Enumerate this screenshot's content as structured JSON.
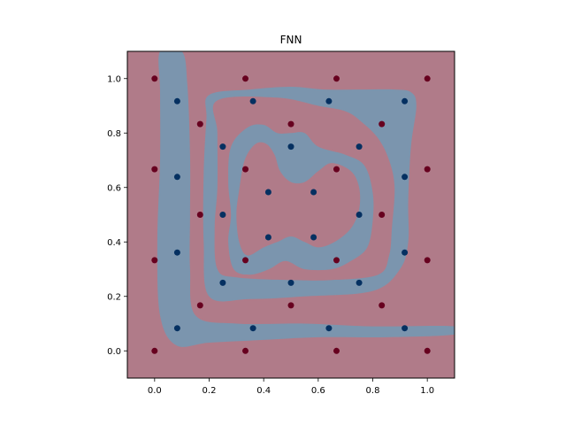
{
  "chart_data": {
    "type": "scatter",
    "title": "FNN",
    "xlabel": "",
    "ylabel": "",
    "xlim": [
      -0.1,
      1.1
    ],
    "ylim": [
      -0.1,
      1.1
    ],
    "xticks": [
      0.0,
      0.2,
      0.4,
      0.6,
      0.8,
      1.0
    ],
    "yticks": [
      0.0,
      0.2,
      0.4,
      0.6,
      0.8,
      1.0
    ],
    "xtick_labels": [
      "0.0",
      "0.2",
      "0.4",
      "0.6",
      "0.8",
      "1.0"
    ],
    "ytick_labels": [
      "0.0",
      "0.2",
      "0.4",
      "0.6",
      "0.8",
      "1.0"
    ],
    "grid": false,
    "legend": "none",
    "colors": {
      "class_0_point": "#67001f",
      "class_1_point": "#053061",
      "class_0_region": "#b07b89",
      "class_1_region": "#7b95ae",
      "axes_edge": "#000000"
    },
    "series": [
      {
        "class": 0,
        "points": [
          [
            0.0,
            1.0
          ],
          [
            0.333,
            1.0
          ],
          [
            0.667,
            1.0
          ],
          [
            1.0,
            1.0
          ],
          [
            0.0,
            0.667
          ],
          [
            1.0,
            0.667
          ],
          [
            0.0,
            0.333
          ],
          [
            1.0,
            0.333
          ],
          [
            0.0,
            0.0
          ],
          [
            0.333,
            0.0
          ],
          [
            0.667,
            0.0
          ],
          [
            1.0,
            0.0
          ],
          [
            0.167,
            0.833
          ],
          [
            0.5,
            0.833
          ],
          [
            0.833,
            0.833
          ],
          [
            0.167,
            0.5
          ],
          [
            0.833,
            0.5
          ],
          [
            0.167,
            0.167
          ],
          [
            0.5,
            0.167
          ],
          [
            0.833,
            0.167
          ],
          [
            0.333,
            0.667
          ],
          [
            0.667,
            0.667
          ],
          [
            0.333,
            0.333
          ],
          [
            0.667,
            0.333
          ]
        ]
      },
      {
        "class": 1,
        "points": [
          [
            0.083,
            0.917
          ],
          [
            0.361,
            0.917
          ],
          [
            0.639,
            0.917
          ],
          [
            0.917,
            0.917
          ],
          [
            0.083,
            0.639
          ],
          [
            0.917,
            0.639
          ],
          [
            0.083,
            0.361
          ],
          [
            0.917,
            0.361
          ],
          [
            0.083,
            0.083
          ],
          [
            0.361,
            0.083
          ],
          [
            0.639,
            0.083
          ],
          [
            0.917,
            0.083
          ],
          [
            0.25,
            0.75
          ],
          [
            0.5,
            0.75
          ],
          [
            0.75,
            0.75
          ],
          [
            0.25,
            0.5
          ],
          [
            0.75,
            0.5
          ],
          [
            0.25,
            0.25
          ],
          [
            0.5,
            0.25
          ],
          [
            0.75,
            0.25
          ],
          [
            0.417,
            0.583
          ],
          [
            0.583,
            0.583
          ],
          [
            0.417,
            0.417
          ],
          [
            0.583,
            0.417
          ]
        ]
      }
    ],
    "decision_region_class1": [
      [
        [
          0.02,
          1.1
        ],
        [
          0.1,
          1.1
        ],
        [
          0.12,
          0.98
        ],
        [
          0.13,
          0.72
        ],
        [
          0.13,
          0.5
        ],
        [
          0.13,
          0.3
        ],
        [
          0.15,
          0.13
        ],
        [
          0.3,
          0.1
        ],
        [
          0.55,
          0.1
        ],
        [
          0.8,
          0.09
        ],
        [
          1.1,
          0.09
        ],
        [
          1.1,
          0.06
        ],
        [
          0.85,
          0.05
        ],
        [
          0.6,
          0.05
        ],
        [
          0.4,
          0.04
        ],
        [
          0.2,
          0.03
        ],
        [
          0.08,
          0.02
        ],
        [
          0.02,
          0.13
        ],
        [
          0.01,
          0.4
        ],
        [
          0.02,
          0.7
        ],
        [
          0.02,
          0.95
        ]
      ],
      [
        [
          0.2,
          0.94
        ],
        [
          0.35,
          0.96
        ],
        [
          0.5,
          0.97
        ],
        [
          0.62,
          0.96
        ],
        [
          0.75,
          0.96
        ],
        [
          0.88,
          0.96
        ],
        [
          0.94,
          0.95
        ],
        [
          0.96,
          0.9
        ],
        [
          0.94,
          0.75
        ],
        [
          0.93,
          0.55
        ],
        [
          0.93,
          0.4
        ],
        [
          0.9,
          0.3
        ],
        [
          0.8,
          0.22
        ],
        [
          0.55,
          0.2
        ],
        [
          0.35,
          0.19
        ],
        [
          0.2,
          0.2
        ],
        [
          0.18,
          0.4
        ],
        [
          0.18,
          0.65
        ],
        [
          0.19,
          0.85
        ]
      ]
    ],
    "decision_region_class0_holes": [
      [
        [
          0.23,
          0.92
        ],
        [
          0.45,
          0.93
        ],
        [
          0.6,
          0.9
        ],
        [
          0.7,
          0.88
        ],
        [
          0.76,
          0.84
        ],
        [
          0.82,
          0.78
        ],
        [
          0.86,
          0.7
        ],
        [
          0.88,
          0.6
        ],
        [
          0.87,
          0.45
        ],
        [
          0.86,
          0.35
        ],
        [
          0.82,
          0.28
        ],
        [
          0.65,
          0.26
        ],
        [
          0.5,
          0.26
        ],
        [
          0.3,
          0.27
        ],
        [
          0.23,
          0.3
        ],
        [
          0.22,
          0.45
        ],
        [
          0.23,
          0.6
        ],
        [
          0.23,
          0.8
        ]
      ]
    ],
    "decision_region_class1_inner": [
      [
        [
          0.27,
          0.62
        ],
        [
          0.28,
          0.75
        ],
        [
          0.34,
          0.82
        ],
        [
          0.4,
          0.83
        ],
        [
          0.45,
          0.8
        ],
        [
          0.5,
          0.8
        ],
        [
          0.55,
          0.8
        ],
        [
          0.6,
          0.75
        ],
        [
          0.7,
          0.72
        ],
        [
          0.77,
          0.68
        ],
        [
          0.8,
          0.58
        ],
        [
          0.8,
          0.48
        ],
        [
          0.78,
          0.38
        ],
        [
          0.72,
          0.33
        ],
        [
          0.65,
          0.3
        ],
        [
          0.55,
          0.3
        ],
        [
          0.48,
          0.33
        ],
        [
          0.42,
          0.3
        ],
        [
          0.35,
          0.28
        ],
        [
          0.29,
          0.3
        ],
        [
          0.27,
          0.4
        ],
        [
          0.28,
          0.5
        ]
      ]
    ],
    "decision_region_class0_inner": [
      [
        [
          0.31,
          0.59
        ],
        [
          0.33,
          0.7
        ],
        [
          0.37,
          0.76
        ],
        [
          0.41,
          0.76
        ],
        [
          0.44,
          0.72
        ],
        [
          0.46,
          0.66
        ],
        [
          0.5,
          0.62
        ],
        [
          0.55,
          0.62
        ],
        [
          0.6,
          0.66
        ],
        [
          0.65,
          0.69
        ],
        [
          0.72,
          0.66
        ],
        [
          0.75,
          0.6
        ],
        [
          0.75,
          0.52
        ],
        [
          0.72,
          0.45
        ],
        [
          0.66,
          0.4
        ],
        [
          0.6,
          0.38
        ],
        [
          0.55,
          0.4
        ],
        [
          0.5,
          0.42
        ],
        [
          0.45,
          0.4
        ],
        [
          0.4,
          0.38
        ],
        [
          0.34,
          0.35
        ],
        [
          0.31,
          0.4
        ],
        [
          0.3,
          0.5
        ]
      ]
    ]
  }
}
